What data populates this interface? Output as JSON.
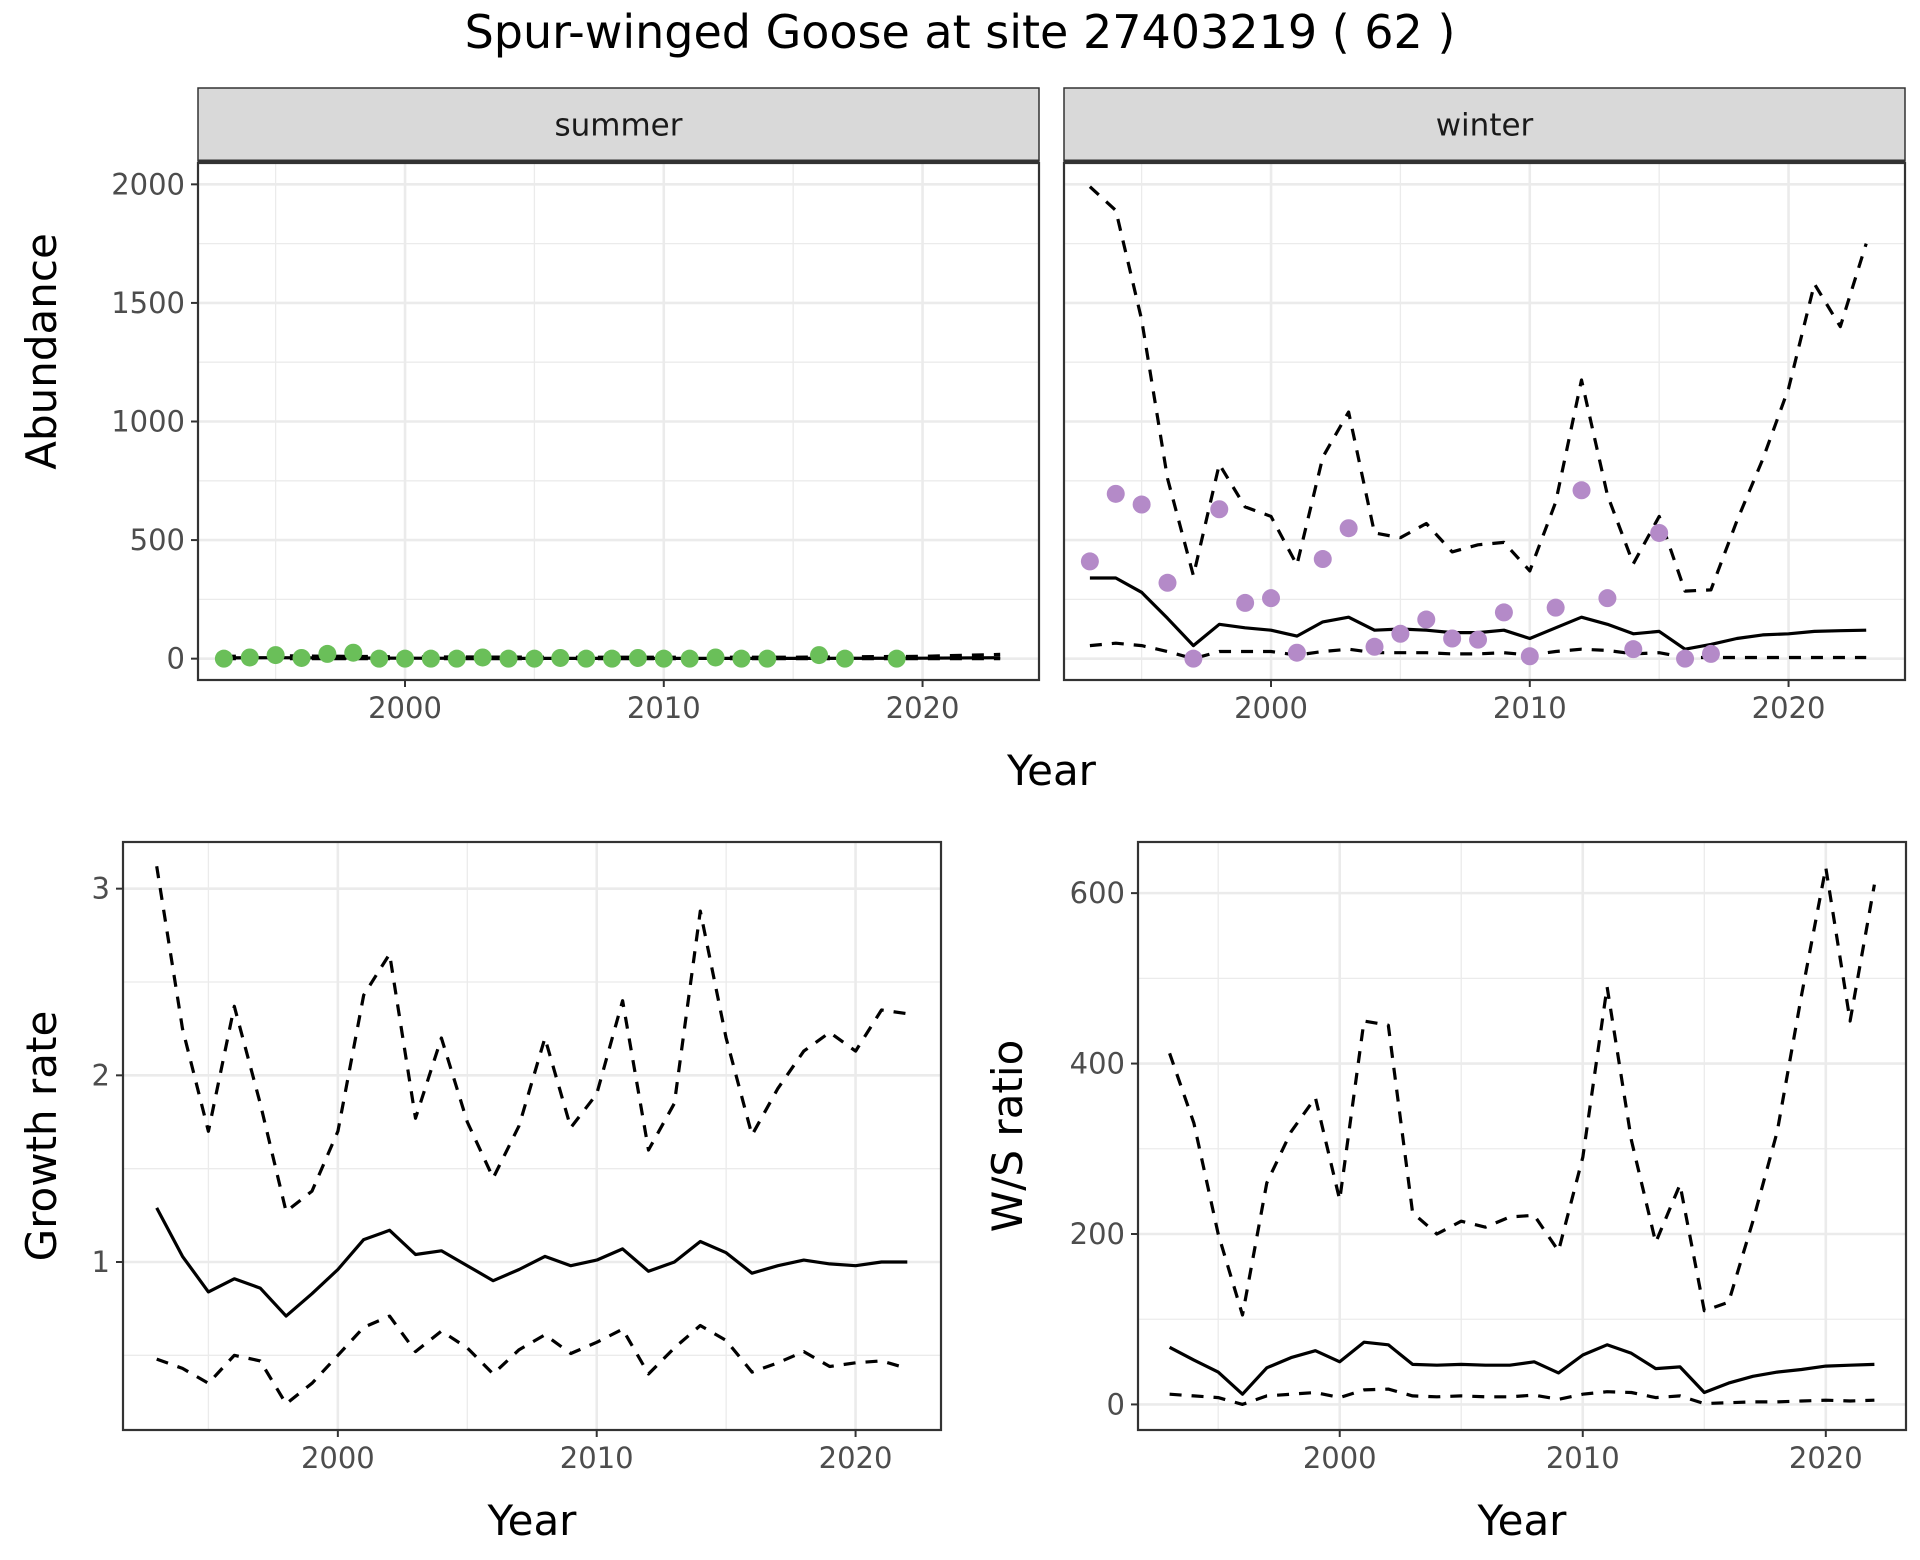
{
  "title": "Spur-winged Goose at site 27403219 ( 62 )",
  "colors": {
    "summer_points": "#6abf59",
    "winter_points": "#b48ac8",
    "lines": "#000000",
    "strip_bg": "#d9d9d9",
    "grid": "#ebebeb"
  },
  "chart_data": [
    {
      "id": "abundance",
      "type": "line",
      "facets": [
        "summer",
        "winter"
      ],
      "xlabel": "Year",
      "ylabel": "Abundance",
      "xlim": [
        1992,
        2024.5
      ],
      "ylim": [
        -90,
        2090
      ],
      "xticks": [
        2000,
        2010,
        2020
      ],
      "yticks": [
        0,
        500,
        1000,
        1500,
        2000
      ],
      "grid": true,
      "panels": [
        {
          "facet": "summer",
          "point_color": "#6abf59",
          "observed": {
            "x": [
              1993,
              1994,
              1995,
              1996,
              1997,
              1998,
              1999,
              2000,
              2001,
              2002,
              2003,
              2004,
              2005,
              2006,
              2007,
              2008,
              2009,
              2010,
              2011,
              2012,
              2013,
              2014,
              2016,
              2017,
              2019
            ],
            "y": [
              0,
              5,
              15,
              3,
              20,
              25,
              0,
              0,
              0,
              0,
              5,
              0,
              0,
              3,
              0,
              0,
              3,
              0,
              0,
              5,
              0,
              0,
              15,
              0,
              0
            ]
          },
          "fit": {
            "x": [
              1993,
              1995,
              2000,
              2005,
              2010,
              2015,
              2020,
              2023
            ],
            "y": [
              3,
              4,
              2,
              1,
              1,
              1,
              2,
              4
            ]
          },
          "upper": {
            "x": [
              1993,
              1995,
              2000,
              2005,
              2010,
              2015,
              2020,
              2023
            ],
            "y": [
              10,
              12,
              8,
              6,
              6,
              6,
              10,
              18
            ]
          },
          "lower": {
            "x": [
              1993,
              2023
            ],
            "y": [
              0,
              0
            ]
          }
        },
        {
          "facet": "winter",
          "point_color": "#b48ac8",
          "observed": {
            "x": [
              1993,
              1994,
              1995,
              1996,
              1997,
              1998,
              1999,
              2000,
              2001,
              2002,
              2003,
              2004,
              2005,
              2006,
              2007,
              2008,
              2009,
              2010,
              2011,
              2012,
              2013,
              2014,
              2015,
              2016,
              2017
            ],
            "y": [
              410,
              695,
              650,
              320,
              0,
              630,
              235,
              255,
              25,
              420,
              550,
              50,
              105,
              165,
              85,
              80,
              195,
              10,
              215,
              710,
              255,
              40,
              530,
              0,
              20
            ]
          },
          "fit": {
            "x": [
              1993,
              1994,
              1995,
              1996,
              1997,
              1998,
              1999,
              2000,
              2001,
              2002,
              2003,
              2004,
              2005,
              2006,
              2007,
              2008,
              2009,
              2010,
              2011,
              2012,
              2013,
              2014,
              2015,
              2016,
              2017,
              2018,
              2019,
              2020,
              2021,
              2022,
              2023
            ],
            "y": [
              340,
              340,
              280,
              170,
              55,
              145,
              130,
              120,
              95,
              155,
              175,
              120,
              125,
              120,
              110,
              110,
              120,
              85,
              130,
              175,
              145,
              105,
              115,
              40,
              60,
              85,
              100,
              105,
              115,
              118,
              120
            ]
          },
          "upper": {
            "x": [
              1993,
              1994,
              1995,
              1996,
              1997,
              1998,
              1999,
              2000,
              2001,
              2002,
              2003,
              2004,
              2005,
              2006,
              2007,
              2008,
              2009,
              2010,
              2011,
              2012,
              2013,
              2014,
              2015,
              2016,
              2017,
              2018,
              2019,
              2020,
              2021,
              2022,
              2023
            ],
            "y": [
              1990,
              1890,
              1430,
              760,
              350,
              820,
              640,
              600,
              395,
              850,
              1040,
              530,
              510,
              570,
              450,
              480,
              490,
              370,
              660,
              1175,
              690,
              400,
              600,
              285,
              290,
              580,
              840,
              1140,
              1580,
              1400,
              1750
            ]
          },
          "lower": {
            "x": [
              1993,
              1994,
              1995,
              1996,
              1997,
              1998,
              1999,
              2000,
              2001,
              2002,
              2003,
              2004,
              2005,
              2006,
              2007,
              2008,
              2009,
              2010,
              2011,
              2012,
              2013,
              2014,
              2015,
              2016,
              2017,
              2018,
              2019,
              2020,
              2021,
              2022,
              2023
            ],
            "y": [
              55,
              65,
              55,
              30,
              0,
              30,
              30,
              30,
              15,
              30,
              40,
              25,
              25,
              25,
              20,
              20,
              25,
              15,
              30,
              40,
              35,
              20,
              25,
              5,
              5,
              5,
              5,
              5,
              5,
              5,
              5
            ]
          }
        }
      ]
    },
    {
      "id": "growth",
      "type": "line",
      "xlabel": "Year",
      "ylabel": "Growth rate",
      "xlim": [
        1991.7,
        2023.3
      ],
      "ylim": [
        0.1,
        3.25
      ],
      "xticks": [
        2000,
        2010,
        2020
      ],
      "yticks": [
        1,
        2,
        3
      ],
      "grid": true,
      "fit": {
        "x": [
          1993,
          1994,
          1995,
          1996,
          1997,
          1998,
          1999,
          2000,
          2001,
          2002,
          2003,
          2004,
          2005,
          2006,
          2007,
          2008,
          2009,
          2010,
          2011,
          2012,
          2013,
          2014,
          2015,
          2016,
          2017,
          2018,
          2019,
          2020,
          2021,
          2022
        ],
        "y": [
          1.29,
          1.03,
          0.84,
          0.91,
          0.86,
          0.71,
          0.83,
          0.96,
          1.12,
          1.17,
          1.04,
          1.06,
          0.98,
          0.9,
          0.96,
          1.03,
          0.98,
          1.01,
          1.07,
          0.95,
          1.0,
          1.11,
          1.05,
          0.94,
          0.98,
          1.01,
          0.99,
          0.98,
          1.0,
          1.0
        ]
      },
      "upper": {
        "x": [
          1993,
          1994,
          1995,
          1996,
          1997,
          1998,
          1999,
          2000,
          2001,
          2002,
          2003,
          2004,
          2005,
          2006,
          2007,
          2008,
          2009,
          2010,
          2011,
          2012,
          2013,
          2014,
          2015,
          2016,
          2017,
          2018,
          2019,
          2020,
          2021,
          2022
        ],
        "y": [
          3.12,
          2.25,
          1.7,
          2.37,
          1.85,
          1.27,
          1.38,
          1.7,
          2.43,
          2.65,
          1.77,
          2.2,
          1.75,
          1.45,
          1.73,
          2.2,
          1.72,
          1.9,
          2.4,
          1.6,
          1.85,
          2.88,
          2.2,
          1.68,
          1.93,
          2.13,
          2.23,
          2.13,
          2.35,
          2.33
        ]
      },
      "lower": {
        "x": [
          1993,
          1994,
          1995,
          1996,
          1997,
          1998,
          1999,
          2000,
          2001,
          2002,
          2003,
          2004,
          2005,
          2006,
          2007,
          2008,
          2009,
          2010,
          2011,
          2012,
          2013,
          2014,
          2015,
          2016,
          2017,
          2018,
          2019,
          2020,
          2021,
          2022
        ],
        "y": [
          0.48,
          0.43,
          0.35,
          0.5,
          0.47,
          0.24,
          0.35,
          0.5,
          0.65,
          0.71,
          0.52,
          0.63,
          0.54,
          0.4,
          0.53,
          0.61,
          0.51,
          0.57,
          0.64,
          0.4,
          0.54,
          0.66,
          0.58,
          0.41,
          0.46,
          0.52,
          0.44,
          0.46,
          0.47,
          0.43
        ]
      }
    },
    {
      "id": "ws_ratio",
      "type": "line",
      "xlabel": "Year",
      "ylabel": "W/S ratio",
      "xlim": [
        1991.7,
        2023.3
      ],
      "ylim": [
        -30,
        660
      ],
      "xticks": [
        2000,
        2010,
        2020
      ],
      "yticks": [
        0,
        200,
        400,
        600
      ],
      "grid": true,
      "fit": {
        "x": [
          1993,
          1994,
          1995,
          1996,
          1997,
          1998,
          1999,
          2000,
          2001,
          2002,
          2003,
          2004,
          2005,
          2006,
          2007,
          2008,
          2009,
          2010,
          2011,
          2012,
          2013,
          2014,
          2015,
          2016,
          2017,
          2018,
          2019,
          2020,
          2021,
          2022
        ],
        "y": [
          67,
          52,
          38,
          12,
          43,
          55,
          63,
          50,
          73,
          70,
          47,
          46,
          47,
          46,
          46,
          50,
          37,
          58,
          70,
          60,
          42,
          44,
          14,
          25,
          33,
          38,
          41,
          45,
          46,
          47
        ]
      },
      "upper": {
        "x": [
          1993,
          1994,
          1995,
          1996,
          1997,
          1998,
          1999,
          2000,
          2001,
          2002,
          2003,
          2004,
          2005,
          2006,
          2007,
          2008,
          2009,
          2010,
          2011,
          2012,
          2013,
          2014,
          2015,
          2016,
          2017,
          2018,
          2019,
          2020,
          2021,
          2022
        ],
        "y": [
          412,
          330,
          200,
          105,
          260,
          320,
          360,
          240,
          450,
          445,
          225,
          200,
          215,
          208,
          220,
          222,
          180,
          290,
          490,
          310,
          190,
          258,
          110,
          120,
          215,
          320,
          480,
          630,
          450,
          610
        ]
      },
      "lower": {
        "x": [
          1993,
          1994,
          1995,
          1996,
          1997,
          1998,
          1999,
          2000,
          2001,
          2002,
          2003,
          2004,
          2005,
          2006,
          2007,
          2008,
          2009,
          2010,
          2011,
          2012,
          2013,
          2014,
          2015,
          2016,
          2017,
          2018,
          2019,
          2020,
          2021,
          2022
        ],
        "y": [
          12,
          10,
          8,
          0,
          10,
          12,
          14,
          8,
          17,
          18,
          10,
          9,
          10,
          9,
          9,
          11,
          6,
          12,
          15,
          14,
          8,
          10,
          1,
          2,
          3,
          3,
          4,
          5,
          4,
          5
        ]
      }
    }
  ]
}
